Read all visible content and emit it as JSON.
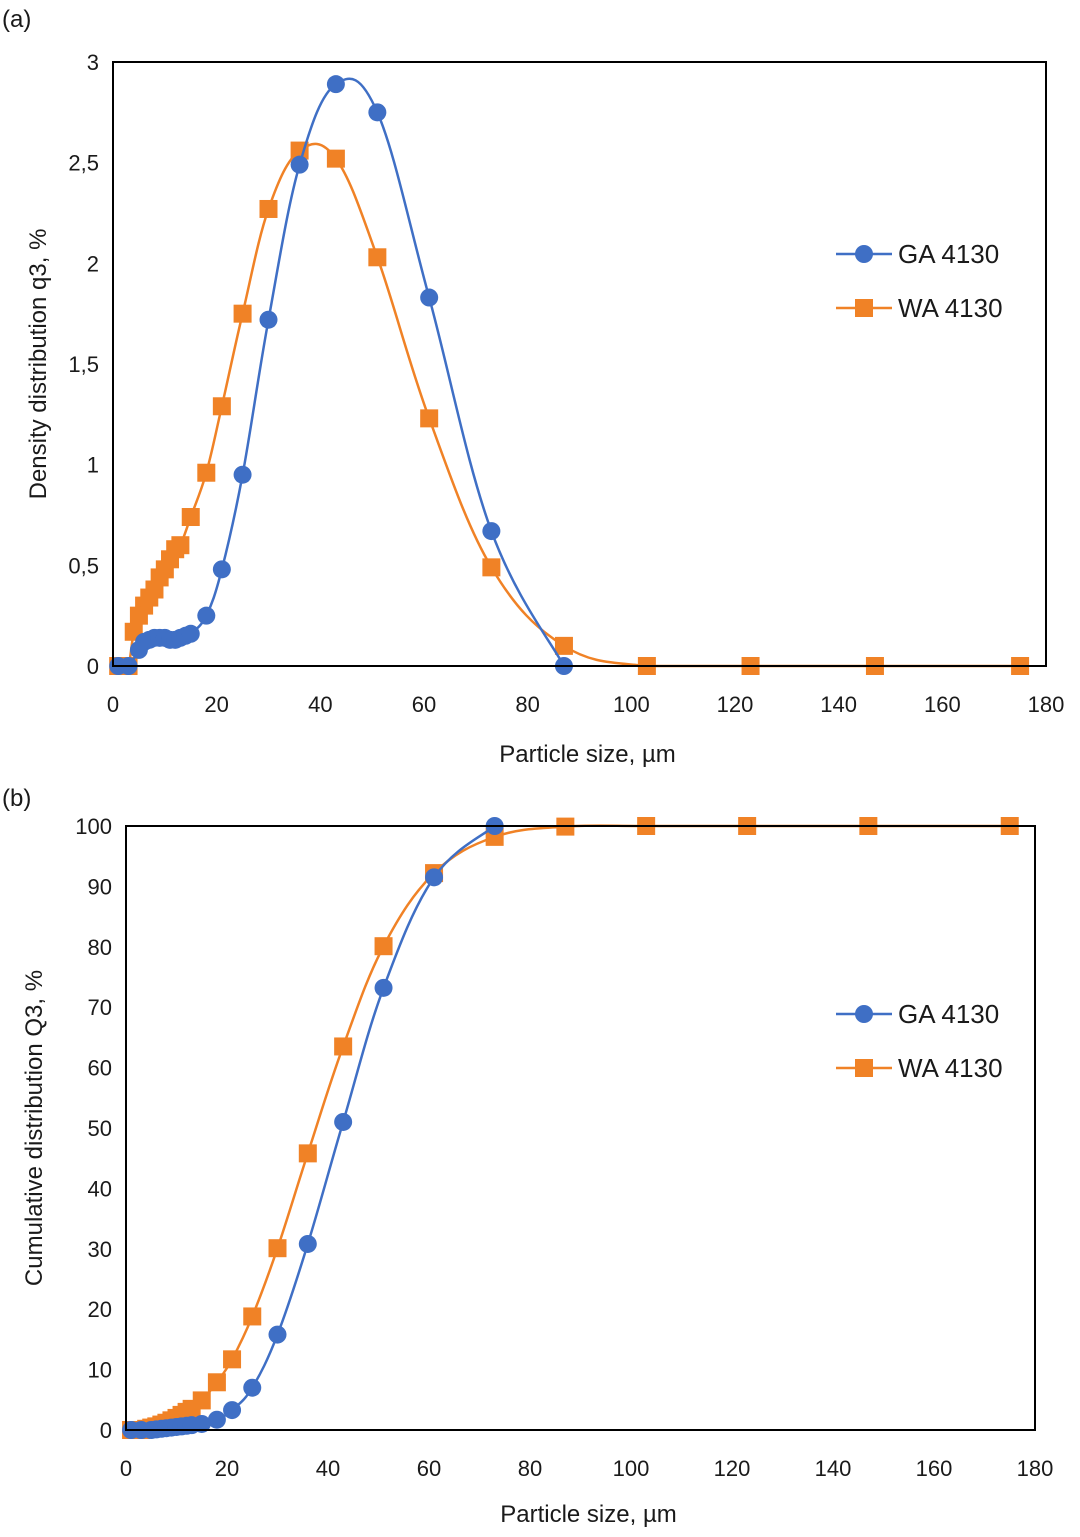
{
  "colors": {
    "ga": "#3f6fc5",
    "wa": "#f08226",
    "axis": "#000000"
  },
  "chart_data": [
    {
      "type": "line",
      "panel_label": "(a)",
      "xlabel": "Particle size, µm",
      "ylabel": "Density distribution q3, %",
      "xlim": [
        0,
        180
      ],
      "ylim": [
        0,
        3
      ],
      "xticks": [
        0,
        20,
        40,
        60,
        80,
        100,
        120,
        140,
        160,
        180
      ],
      "yticks": [
        0,
        0.5,
        1,
        1.5,
        2,
        2.5,
        3
      ],
      "ytick_labels": [
        "0",
        "0,5",
        "1",
        "1,5",
        "2",
        "2,5",
        "3"
      ],
      "grid": false,
      "legend_position": "right",
      "series": [
        {
          "name": "GA 4130",
          "marker": "circle",
          "color": "#3f6fc5",
          "x": [
            1,
            3,
            5,
            6,
            7,
            8,
            9,
            10,
            11,
            12,
            13,
            14,
            15,
            18,
            21,
            25,
            30,
            36,
            43,
            51,
            61,
            73,
            87
          ],
          "y": [
            0,
            0,
            0.08,
            0.12,
            0.13,
            0.14,
            0.14,
            0.14,
            0.13,
            0.13,
            0.14,
            0.15,
            0.16,
            0.25,
            0.48,
            0.95,
            1.72,
            2.49,
            2.89,
            2.75,
            1.83,
            0.67,
            0
          ]
        },
        {
          "name": "WA 4130",
          "marker": "square",
          "color": "#f08226",
          "x": [
            1,
            2,
            3,
            4,
            5,
            6,
            7,
            8,
            9,
            10,
            11,
            12,
            13,
            15,
            18,
            21,
            25,
            30,
            36,
            43,
            51,
            61,
            73,
            87,
            103,
            123,
            147,
            175
          ],
          "y": [
            0,
            0,
            0,
            0.17,
            0.25,
            0.3,
            0.34,
            0.38,
            0.44,
            0.48,
            0.53,
            0.58,
            0.6,
            0.74,
            0.96,
            1.29,
            1.75,
            2.27,
            2.56,
            2.52,
            2.03,
            1.23,
            0.49,
            0.1,
            0,
            0,
            0,
            0
          ]
        }
      ]
    },
    {
      "type": "line",
      "panel_label": "(b)",
      "xlabel": "Particle size, µm",
      "ylabel": "Cumulative distribution Q3, %",
      "xlim": [
        0,
        180
      ],
      "ylim": [
        0,
        100
      ],
      "xticks": [
        0,
        20,
        40,
        60,
        80,
        100,
        120,
        140,
        160,
        180
      ],
      "yticks": [
        0,
        10,
        20,
        30,
        40,
        50,
        60,
        70,
        80,
        90,
        100
      ],
      "ytick_labels": [
        "0",
        "10",
        "20",
        "30",
        "40",
        "50",
        "60",
        "70",
        "80",
        "90",
        "100"
      ],
      "grid": false,
      "legend_position": "right",
      "series": [
        {
          "name": "GA 4130",
          "marker": "circle",
          "color": "#3f6fc5",
          "x": [
            1,
            3,
            5,
            6,
            7,
            8,
            9,
            10,
            11,
            12,
            13,
            15,
            18,
            21,
            25,
            30,
            36,
            43,
            51,
            61,
            73
          ],
          "y": [
            0,
            0,
            0,
            0.1,
            0.2,
            0.3,
            0.4,
            0.5,
            0.6,
            0.7,
            0.8,
            1.0,
            1.7,
            3.3,
            7.0,
            15.8,
            30.8,
            51.0,
            73.2,
            91.5,
            100
          ]
        },
        {
          "name": "WA 4130",
          "marker": "square",
          "color": "#f08226",
          "x": [
            1,
            2,
            3,
            4,
            5,
            6,
            7,
            8,
            9,
            10,
            11,
            12,
            13,
            15,
            18,
            21,
            25,
            30,
            36,
            43,
            51,
            61,
            73,
            87,
            103,
            123,
            147,
            175
          ],
          "y": [
            0,
            0,
            0,
            0.2,
            0.4,
            0.6,
            0.9,
            1.2,
            1.6,
            2.0,
            2.5,
            3.0,
            3.5,
            4.9,
            7.9,
            11.7,
            18.8,
            30.1,
            45.8,
            63.5,
            80.1,
            92.2,
            98.2,
            99.9,
            100,
            100,
            100,
            100
          ]
        }
      ]
    }
  ]
}
